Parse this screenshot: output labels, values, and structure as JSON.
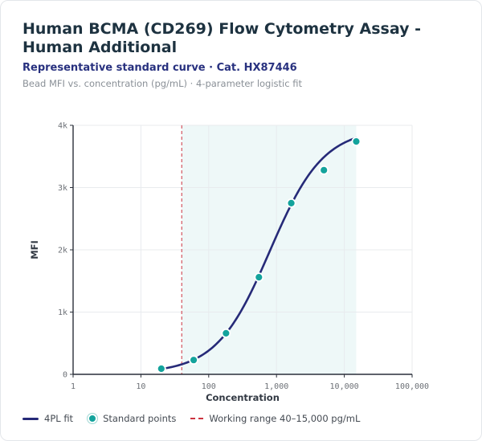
{
  "header": {
    "title": "Human BCMA (CD269) Flow Cytometry Assay - Human Additional",
    "subtitle": "Representative standard curve · Cat. HX87446",
    "note": "Bead MFI vs. concentration (pg/mL) · 4-parameter logistic fit"
  },
  "chart_data": {
    "type": "scatter",
    "xlabel": "Concentration",
    "ylabel": "MFI",
    "x_scale": "log",
    "xlim": [
      1,
      100000
    ],
    "ylim": [
      0,
      4000
    ],
    "x_ticks": [
      1,
      10,
      100,
      1000,
      10000,
      100000
    ],
    "x_tick_labels": [
      "1",
      "10",
      "100",
      "1,000",
      "10,000",
      "100,000"
    ],
    "y_ticks": [
      0,
      1000,
      2000,
      3000,
      4000
    ],
    "y_tick_labels": [
      "0",
      "1k",
      "2k",
      "3k",
      "4k"
    ],
    "grid": true,
    "legend_position": "bottom-left",
    "working_range": [
      40,
      15000
    ],
    "standard_points": {
      "x": [
        20,
        60,
        180,
        550,
        1650,
        5000,
        15000
      ],
      "y": [
        90,
        230,
        660,
        1560,
        2750,
        3280,
        3740
      ]
    },
    "fit_4pl": {
      "bottom": 20,
      "top": 3950,
      "ec50": 800,
      "hill": 1.1,
      "x_range": [
        20,
        15000
      ]
    },
    "series": [
      {
        "name": "4PL fit",
        "color": "#262a78"
      },
      {
        "name": "Standard points",
        "color": "#13a39c"
      },
      {
        "name": "Working range 40–15,000 pg/mL",
        "color": "#cc3340"
      }
    ]
  }
}
